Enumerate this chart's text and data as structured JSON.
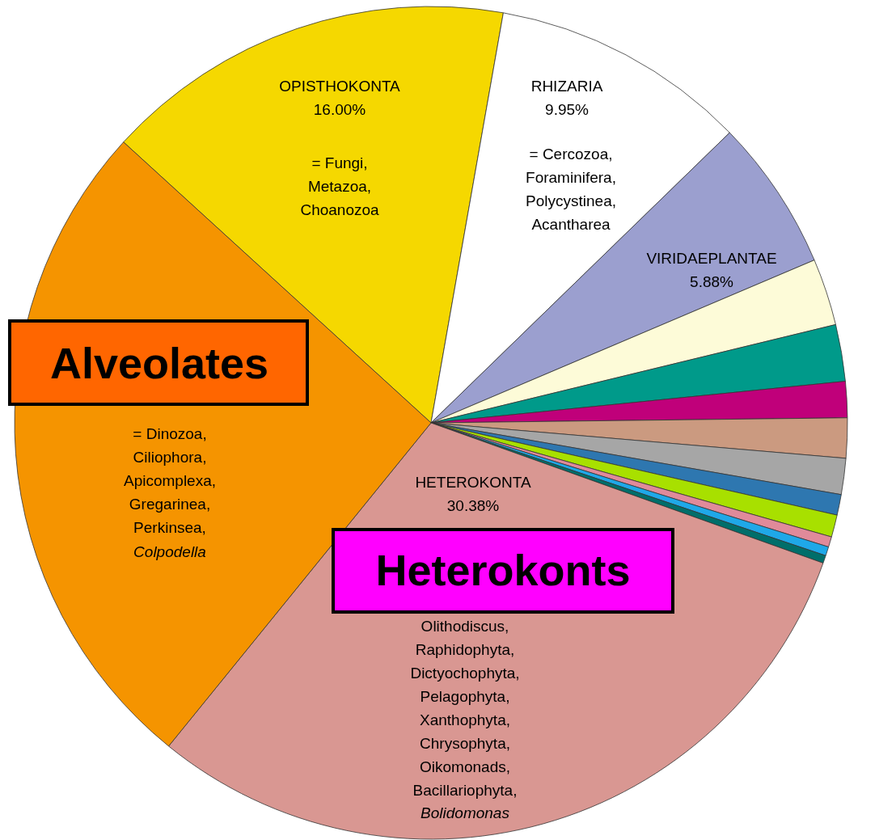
{
  "chart_data": {
    "type": "pie",
    "categories": [
      "OPISTHOKONTA",
      "RHIZARIA",
      "VIRIDAEPLANTAE",
      null,
      null,
      null,
      null,
      null,
      null,
      null,
      null,
      null,
      null,
      "HETEROKONTA",
      null
    ],
    "values": [
      16.0,
      9.95,
      5.88,
      2.6,
      2.2,
      1.4,
      1.55,
      1.4,
      0.8,
      0.86,
      0.4,
      0.35,
      0.3,
      30.38,
      25.93
    ],
    "colors": [
      "#f5d800",
      "#ffffff",
      "#9b9fcf",
      "#fdfbd8",
      "#009a8a",
      "#c0007a",
      "#cb9a80",
      "#a6a6a6",
      "#2e77b0",
      "#a8e000",
      "#e08a9a",
      "#1fa8e8",
      "#006e6a",
      "#d99792",
      "#f59400"
    ],
    "value_labels": [
      "16.00%",
      "9.95%",
      "5.88%",
      null,
      null,
      null,
      null,
      null,
      null,
      null,
      null,
      null,
      null,
      "30.38%",
      null
    ],
    "annotations": [
      "= Fungi,\nMetazoa,\nChoanozoa",
      "= Cercozoa,\nForaminifera,\nPolycystinea,\nAcantharea",
      "= Dinozoa,\nCiliophora,\nApicomplexa,\nGregarinea,\nPerkinsea,",
      "Colpodella",
      "Olithodiscus,\nRaphidophyta,\nDictyochophyta,\nPelagophyta,\nXanthophyta,\nChrysophyta,\nOikomonads,\nBacillariophyta,",
      "Bolidomonas",
      "Alveolates",
      "Heterokonts"
    ]
  }
}
